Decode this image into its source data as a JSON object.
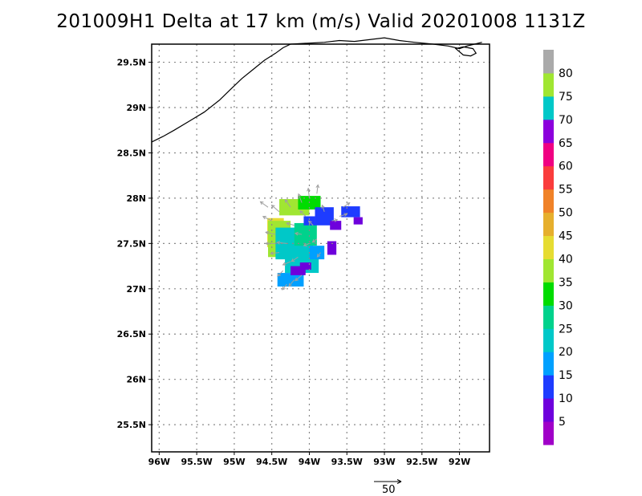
{
  "title": "201009H1 Delta at 17 km (m/s) Valid 20201008 1131Z",
  "map": {
    "lon_range": [
      -96.1,
      -91.6
    ],
    "lat_range": [
      25.2,
      29.7
    ],
    "x_ticks": [
      {
        "lon": -96.0,
        "label": "96W"
      },
      {
        "lon": -95.5,
        "label": "95.5W"
      },
      {
        "lon": -95.0,
        "label": "95W"
      },
      {
        "lon": -94.5,
        "label": "94.5W"
      },
      {
        "lon": -94.0,
        "label": "94W"
      },
      {
        "lon": -93.5,
        "label": "93.5W"
      },
      {
        "lon": -93.0,
        "label": "93W"
      },
      {
        "lon": -92.5,
        "label": "92.5W"
      },
      {
        "lon": -92.0,
        "label": "92W"
      }
    ],
    "y_ticks": [
      {
        "lat": 29.5,
        "label": "29.5N"
      },
      {
        "lat": 29.0,
        "label": "29N"
      },
      {
        "lat": 28.5,
        "label": "28.5N"
      },
      {
        "lat": 28.0,
        "label": "28N"
      },
      {
        "lat": 27.5,
        "label": "27.5N"
      },
      {
        "lat": 27.0,
        "label": "27N"
      },
      {
        "lat": 26.5,
        "label": "26.5N"
      },
      {
        "lat": 26.0,
        "label": "26N"
      },
      {
        "lat": 25.5,
        "label": "25.5N"
      }
    ],
    "grid": "dotted",
    "coastline": [
      [
        -96.1,
        28.62
      ],
      [
        -95.95,
        28.68
      ],
      [
        -95.8,
        28.75
      ],
      [
        -95.6,
        28.85
      ],
      [
        -95.4,
        28.95
      ],
      [
        -95.2,
        29.08
      ],
      [
        -95.05,
        29.2
      ],
      [
        -94.9,
        29.32
      ],
      [
        -94.75,
        29.42
      ],
      [
        -94.6,
        29.52
      ],
      [
        -94.45,
        29.6
      ],
      [
        -94.35,
        29.66
      ],
      [
        -94.25,
        29.7
      ],
      [
        -93.8,
        29.72
      ],
      [
        -93.6,
        29.74
      ],
      [
        -93.4,
        29.73
      ],
      [
        -93.2,
        29.75
      ],
      [
        -93.0,
        29.77
      ],
      [
        -92.8,
        29.74
      ],
      [
        -92.6,
        29.72
      ],
      [
        -92.35,
        29.7
      ],
      [
        -92.15,
        29.68
      ],
      [
        -92.0,
        29.65
      ],
      [
        -91.9,
        29.68
      ],
      [
        -91.8,
        29.7
      ],
      [
        -91.7,
        29.72
      ]
    ],
    "island": [
      [
        -92.05,
        29.65
      ],
      [
        -91.95,
        29.58
      ],
      [
        -91.85,
        29.57
      ],
      [
        -91.78,
        29.6
      ],
      [
        -91.82,
        29.65
      ],
      [
        -91.95,
        29.67
      ],
      [
        -92.05,
        29.65
      ]
    ]
  },
  "colorbar": {
    "levels": [
      0,
      5,
      10,
      15,
      20,
      25,
      30,
      35,
      40,
      45,
      50,
      55,
      60,
      65,
      70,
      75,
      80,
      85
    ],
    "labels": [
      "5",
      "10",
      "15",
      "20",
      "25",
      "30",
      "35",
      "40",
      "45",
      "50",
      "55",
      "60",
      "65",
      "70",
      "75",
      "80"
    ],
    "colors": [
      "#a000c8",
      "#6e00dc",
      "#1e3cff",
      "#00a0ff",
      "#00c8c8",
      "#00d28c",
      "#00dc00",
      "#a0e632",
      "#e6dc32",
      "#e6af2d",
      "#f08228",
      "#fa3c3c",
      "#f00082",
      "#8c00dc",
      "#00c8c8",
      "#a0e632",
      "#aaaaaa"
    ]
  },
  "wind_scale": {
    "value": 50,
    "label": "50"
  },
  "wind_vectors": [
    {
      "lon": -94.3,
      "lat": 27.05,
      "u": -8,
      "v": -10
    },
    {
      "lon": -94.2,
      "lat": 27.1,
      "u": -10,
      "v": -12
    },
    {
      "lon": -94.1,
      "lat": 27.15,
      "u": -12,
      "v": -10
    },
    {
      "lon": -94.25,
      "lat": 27.3,
      "u": -14,
      "v": -6
    },
    {
      "lon": -94.4,
      "lat": 27.4,
      "u": -16,
      "v": -2
    },
    {
      "lon": -94.3,
      "lat": 27.5,
      "u": -18,
      "v": 2
    },
    {
      "lon": -94.45,
      "lat": 27.6,
      "u": -18,
      "v": 4
    },
    {
      "lon": -94.5,
      "lat": 27.75,
      "u": -16,
      "v": 8
    },
    {
      "lon": -94.4,
      "lat": 27.85,
      "u": -14,
      "v": 12
    },
    {
      "lon": -94.25,
      "lat": 27.9,
      "u": -10,
      "v": 14
    },
    {
      "lon": -94.1,
      "lat": 27.95,
      "u": -6,
      "v": 16
    },
    {
      "lon": -94.0,
      "lat": 28.0,
      "u": -2,
      "v": 18
    },
    {
      "lon": -93.9,
      "lat": 28.05,
      "u": 2,
      "v": 16
    },
    {
      "lon": -94.2,
      "lat": 27.7,
      "u": -14,
      "v": 4
    },
    {
      "lon": -94.1,
      "lat": 27.6,
      "u": -12,
      "v": 2
    },
    {
      "lon": -94.0,
      "lat": 27.5,
      "u": -10,
      "v": -4
    },
    {
      "lon": -93.9,
      "lat": 27.55,
      "u": -8,
      "v": -6
    },
    {
      "lon": -94.05,
      "lat": 27.8,
      "u": -10,
      "v": 10
    },
    {
      "lon": -93.95,
      "lat": 27.7,
      "u": -8,
      "v": 8
    },
    {
      "lon": -93.8,
      "lat": 27.85,
      "u": -4,
      "v": 12
    },
    {
      "lon": -93.7,
      "lat": 27.75,
      "u": 10,
      "v": 2
    },
    {
      "lon": -93.6,
      "lat": 27.8,
      "u": 14,
      "v": 4
    },
    {
      "lon": -93.55,
      "lat": 27.9,
      "u": 12,
      "v": 8
    },
    {
      "lon": -94.35,
      "lat": 27.2,
      "u": -10,
      "v": -10
    },
    {
      "lon": -94.15,
      "lat": 27.35,
      "u": -12,
      "v": -8
    },
    {
      "lon": -93.85,
      "lat": 27.4,
      "u": -6,
      "v": -8
    },
    {
      "lon": -94.55,
      "lat": 27.9,
      "u": -14,
      "v": 10
    },
    {
      "lon": -94.45,
      "lat": 27.5,
      "u": -18,
      "v": 0
    }
  ],
  "wind_field": [
    {
      "lon": -94.45,
      "lat": 27.62,
      "dx": 0.22,
      "dy": 0.32,
      "value": 42
    },
    {
      "lon": -94.4,
      "lat": 27.55,
      "dx": 0.3,
      "dy": 0.4,
      "value": 37
    },
    {
      "lon": -94.2,
      "lat": 27.9,
      "dx": 0.4,
      "dy": 0.18,
      "value": 37
    },
    {
      "lon": -94.0,
      "lat": 27.95,
      "dx": 0.3,
      "dy": 0.15,
      "value": 33
    },
    {
      "lon": -94.2,
      "lat": 27.5,
      "dx": 0.5,
      "dy": 0.35,
      "value": 22
    },
    {
      "lon": -94.1,
      "lat": 27.3,
      "dx": 0.45,
      "dy": 0.25,
      "value": 22
    },
    {
      "lon": -94.05,
      "lat": 27.6,
      "dx": 0.3,
      "dy": 0.25,
      "value": 27
    },
    {
      "lon": -94.25,
      "lat": 27.1,
      "dx": 0.35,
      "dy": 0.15,
      "value": 17
    },
    {
      "lon": -94.15,
      "lat": 27.2,
      "dx": 0.2,
      "dy": 0.1,
      "value": 7
    },
    {
      "lon": -94.05,
      "lat": 27.25,
      "dx": 0.15,
      "dy": 0.08,
      "value": 7
    },
    {
      "lon": -93.8,
      "lat": 27.8,
      "dx": 0.25,
      "dy": 0.2,
      "value": 12
    },
    {
      "lon": -93.65,
      "lat": 27.7,
      "dx": 0.15,
      "dy": 0.1,
      "value": 7
    },
    {
      "lon": -93.45,
      "lat": 27.85,
      "dx": 0.25,
      "dy": 0.12,
      "value": 12
    },
    {
      "lon": -93.35,
      "lat": 27.75,
      "dx": 0.12,
      "dy": 0.08,
      "value": 7
    },
    {
      "lon": -93.7,
      "lat": 27.45,
      "dx": 0.12,
      "dy": 0.15,
      "value": 7
    },
    {
      "lon": -94.0,
      "lat": 27.75,
      "dx": 0.15,
      "dy": 0.1,
      "value": 12
    },
    {
      "lon": -93.9,
      "lat": 27.4,
      "dx": 0.2,
      "dy": 0.15,
      "value": 17
    }
  ]
}
